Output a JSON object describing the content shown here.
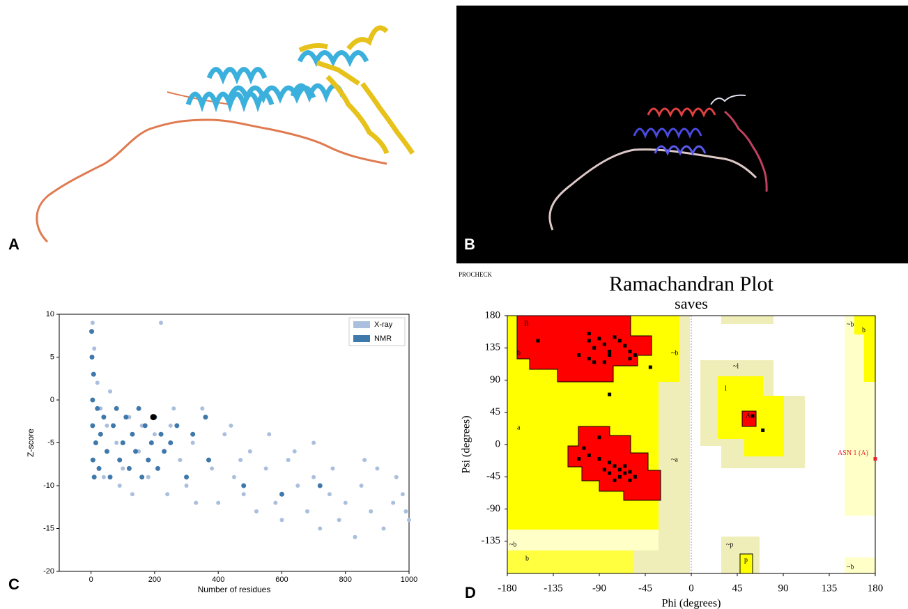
{
  "panel_labels": [
    "A",
    "B",
    "C",
    "D"
  ],
  "chart_data": [
    {
      "type": "scatter",
      "xlabel": "Number of residues",
      "ylabel": "Z-score",
      "xlim": [
        -100,
        1000
      ],
      "xticks": [
        0,
        200,
        400,
        600,
        800,
        1000
      ],
      "ylim": [
        -20,
        10
      ],
      "yticks": [
        -20,
        -15,
        -10,
        -5,
        0,
        5,
        10
      ],
      "legend": "upper right",
      "series": [
        {
          "name": "X-ray",
          "color": "#a9bfdd",
          "x": [
            5,
            10,
            20,
            30,
            50,
            80,
            100,
            120,
            150,
            180,
            200,
            220,
            250,
            280,
            300,
            320,
            350,
            380,
            400,
            420,
            450,
            480,
            500,
            520,
            550,
            580,
            600,
            620,
            650,
            680,
            700,
            720,
            750,
            780,
            800,
            830,
            850,
            880,
            900,
            920,
            950,
            980,
            1000,
            40,
            60,
            90,
            130,
            160,
            240,
            260,
            330,
            440,
            470,
            560,
            640,
            700,
            760,
            860,
            960,
            990
          ],
          "values": [
            9,
            6,
            2,
            -1,
            -3,
            -5,
            -8,
            -2,
            -6,
            -9,
            -4,
            9,
            -3,
            -7,
            -10,
            -5,
            -1,
            -8,
            -12,
            -4,
            -9,
            -11,
            -6,
            -13,
            -8,
            -12,
            -14,
            -7,
            -10,
            -13,
            -9,
            -15,
            -11,
            -14,
            -12,
            -16,
            -10,
            -13,
            -8,
            -15,
            -12,
            -11,
            -14,
            -9,
            1,
            -10,
            -11,
            -3,
            -11,
            -1,
            -12,
            -3,
            -7,
            -4,
            -6,
            -5,
            -8,
            -7,
            -9,
            -13
          ]
        },
        {
          "name": "NMR",
          "color": "#3f78ab",
          "x": [
            2,
            3,
            5,
            5,
            6,
            8,
            10,
            15,
            20,
            25,
            30,
            40,
            50,
            60,
            70,
            80,
            90,
            100,
            110,
            120,
            130,
            140,
            150,
            160,
            170,
            180,
            190,
            200,
            210,
            220,
            230,
            250,
            270,
            300,
            320,
            360,
            370,
            480,
            600,
            720
          ],
          "values": [
            8,
            5,
            0,
            -3,
            -7,
            3,
            -9,
            -5,
            -1,
            -8,
            -4,
            -2,
            -6,
            -9,
            -3,
            -1,
            -7,
            -5,
            -2,
            -8,
            -4,
            -6,
            -1,
            -9,
            -3,
            -7,
            -5,
            -2,
            -8,
            -4,
            -6,
            -5,
            -3,
            -9,
            -4,
            -2,
            -7,
            -10,
            -11,
            -10
          ]
        }
      ],
      "highlight": {
        "x": 196,
        "value": -2,
        "color": "#000000"
      }
    },
    {
      "type": "scatter",
      "header": "PROCHECK",
      "title": "Ramachandran Plot",
      "subtitle": "saves",
      "xlabel": "Phi (degrees)",
      "ylabel": "Psi (degrees)",
      "xlim": [
        -180,
        180
      ],
      "xticks": [
        -180,
        -135,
        -90,
        -45,
        0,
        45,
        90,
        135,
        180
      ],
      "ylim": [
        -180,
        180
      ],
      "yticks": [
        -135,
        -90,
        -45,
        0,
        45,
        90,
        135,
        180
      ],
      "region_labels": [
        "B",
        "b",
        "~b",
        "a",
        "~a",
        "~l",
        "l",
        "A",
        "~p",
        "p",
        "~b",
        "b",
        "~b",
        "b",
        "~b"
      ],
      "points": {
        "color": "#000000",
        "x": [
          -150,
          -100,
          -100,
          -95,
          -90,
          -85,
          -80,
          -75,
          -70,
          -65,
          -60,
          -110,
          -100,
          -95,
          -85,
          -80,
          -60,
          -55,
          -40,
          -80,
          -105,
          -100,
          -90,
          -85,
          -80,
          -75,
          -70,
          -65,
          -60,
          -70,
          -75,
          -65,
          -80,
          -60,
          -55,
          -90,
          -110,
          60,
          70
        ],
        "values": [
          145,
          155,
          145,
          135,
          148,
          140,
          130,
          150,
          145,
          138,
          130,
          125,
          120,
          115,
          115,
          125,
          120,
          125,
          108,
          70,
          -5,
          -15,
          -20,
          -35,
          -40,
          -30,
          -45,
          -40,
          -50,
          -35,
          -50,
          -30,
          -25,
          -38,
          -45,
          10,
          -20,
          40,
          20
        ]
      },
      "annotation": {
        "text": "ASN 1 (A)",
        "x": 180,
        "value": -20,
        "color": "#e8202a"
      }
    }
  ]
}
